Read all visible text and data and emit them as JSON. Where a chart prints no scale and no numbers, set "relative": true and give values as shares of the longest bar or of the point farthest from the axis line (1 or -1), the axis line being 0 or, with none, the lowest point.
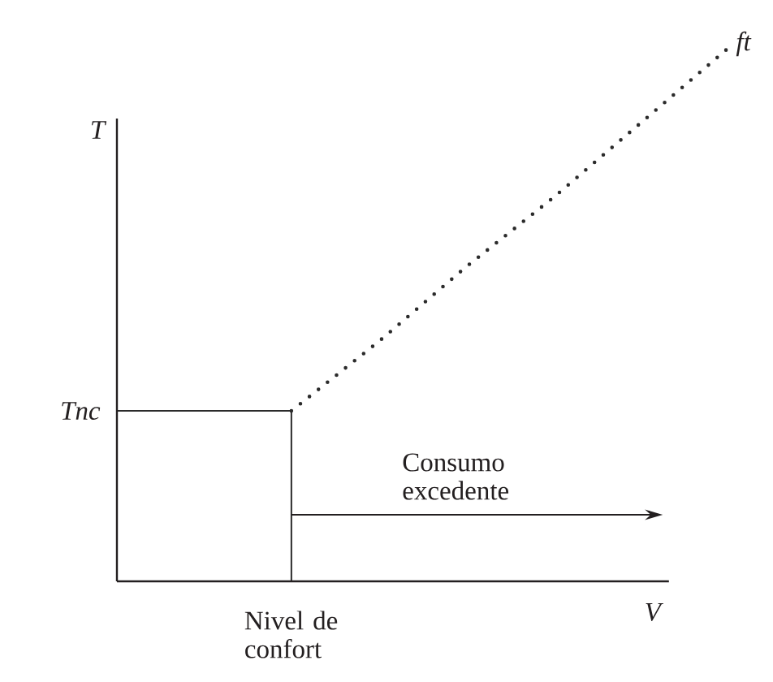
{
  "chart_data": {
    "type": "line",
    "relative": true,
    "xlabel": "V",
    "ylabel": "T",
    "categories": [
      null,
      null,
      null,
      null,
      null,
      null,
      null,
      null
    ],
    "series": [
      {
        "name": "Tnc",
        "type": "step",
        "color": "#2b2b2b",
        "values": [
          0.32,
          0.32,
          0,
          null,
          null,
          null,
          null,
          null
        ]
      },
      {
        "name": "ft",
        "color": "#2b2b2b",
        "line_style": "dotted",
        "values": [
          null,
          null,
          0.32,
          0.45,
          0.59,
          0.72,
          0.86,
          1
        ]
      }
    ],
    "annotations": [
      {
        "text": "Nivel de confort",
        "y": 0
      },
      "Consumo excedente"
    ]
  }
}
